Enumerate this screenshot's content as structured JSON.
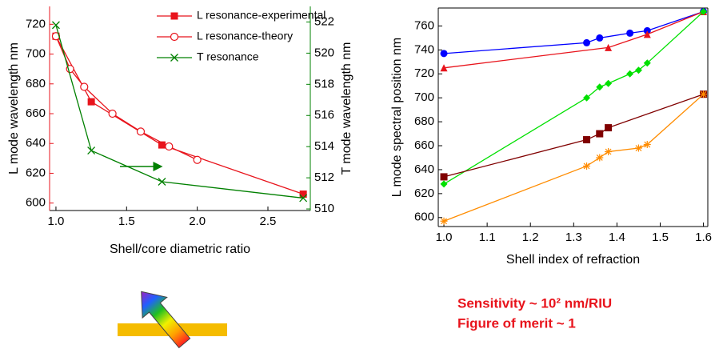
{
  "chart_data": [
    {
      "type": "line",
      "xlabel": "Shell/core diametric ratio",
      "ylabel": "L mode wavelength nm",
      "y2label": "T mode wavelength nm",
      "ycolor": "#e8141c",
      "y2color": "#008000",
      "xlim": [
        0.955,
        2.8
      ],
      "xticks": [
        {
          "value": 1,
          "label": "1.0"
        },
        1.5,
        {
          "value": 2,
          "label": "2.0"
        },
        2.5
      ],
      "ylim": [
        595,
        732
      ],
      "yticks": [
        600,
        620,
        640,
        660,
        680,
        700,
        720
      ],
      "y2lim": [
        509.9,
        523
      ],
      "y2ticks": [
        510,
        512,
        514,
        516,
        518,
        520,
        522
      ],
      "legend": "upper right",
      "series": [
        {
          "name": "L resonance-experimental",
          "color": "#e8141c",
          "marker": "square",
          "x": [
            1.0,
            1.25,
            1.75,
            2.75
          ],
          "values": [
            712,
            668,
            639,
            606
          ]
        },
        {
          "name": "L resonance-theory",
          "color": "#e8141c",
          "marker": "circle-open",
          "x": [
            1.0,
            1.1,
            1.2,
            1.4,
            1.6,
            1.8,
            2.0
          ],
          "values": [
            712,
            690,
            678,
            660,
            648,
            638,
            629
          ]
        },
        {
          "name": "T resonance",
          "color": "#008000",
          "marker": "x",
          "axis": "y2",
          "x": [
            1.0,
            1.25,
            1.75,
            2.75
          ],
          "values": [
            521.8,
            513.75,
            511.75,
            510.7
          ]
        }
      ]
    },
    {
      "type": "line",
      "xlabel": "Shell index of refraction",
      "ylabel": "L mode spectral position nm",
      "xlim": [
        0.987,
        1.61
      ],
      "xticks": [
        {
          "value": 1,
          "label": "1.0"
        },
        1.1,
        1.2,
        1.3,
        1.4,
        1.5,
        1.6
      ],
      "ylim": [
        592.5,
        775
      ],
      "yticks": [
        600,
        620,
        640,
        660,
        680,
        700,
        720,
        740,
        760
      ],
      "series": [
        {
          "color": "#0000ff",
          "marker": "circle",
          "x": [
            1.0,
            1.33,
            1.36,
            1.43,
            1.47,
            1.6
          ],
          "values": [
            737,
            746,
            750,
            754,
            756,
            772
          ]
        },
        {
          "color": "#e8141c",
          "marker": "triangle",
          "x": [
            1.0,
            1.38,
            1.47,
            1.6
          ],
          "values": [
            725,
            742,
            753,
            772
          ]
        },
        {
          "color": "#00e000",
          "marker": "diamond",
          "x": [
            1.0,
            1.33,
            1.36,
            1.38,
            1.43,
            1.45,
            1.47,
            1.6
          ],
          "values": [
            628,
            700,
            709,
            712,
            720,
            723,
            729,
            772
          ]
        },
        {
          "color": "#800000",
          "marker": "square",
          "x": [
            1.0,
            1.33,
            1.36,
            1.38,
            1.6
          ],
          "values": [
            634,
            665,
            670,
            675,
            703
          ]
        },
        {
          "color": "#ff8c00",
          "marker": "asterisk",
          "x": [
            1.0,
            1.33,
            1.36,
            1.38,
            1.45,
            1.47,
            1.6
          ],
          "values": [
            597,
            643,
            650,
            655,
            658,
            661,
            703
          ]
        }
      ]
    }
  ],
  "notes": [
    "Sensitivity ~ 10² nm/RIU",
    "Figure of merit ~ 1"
  ]
}
